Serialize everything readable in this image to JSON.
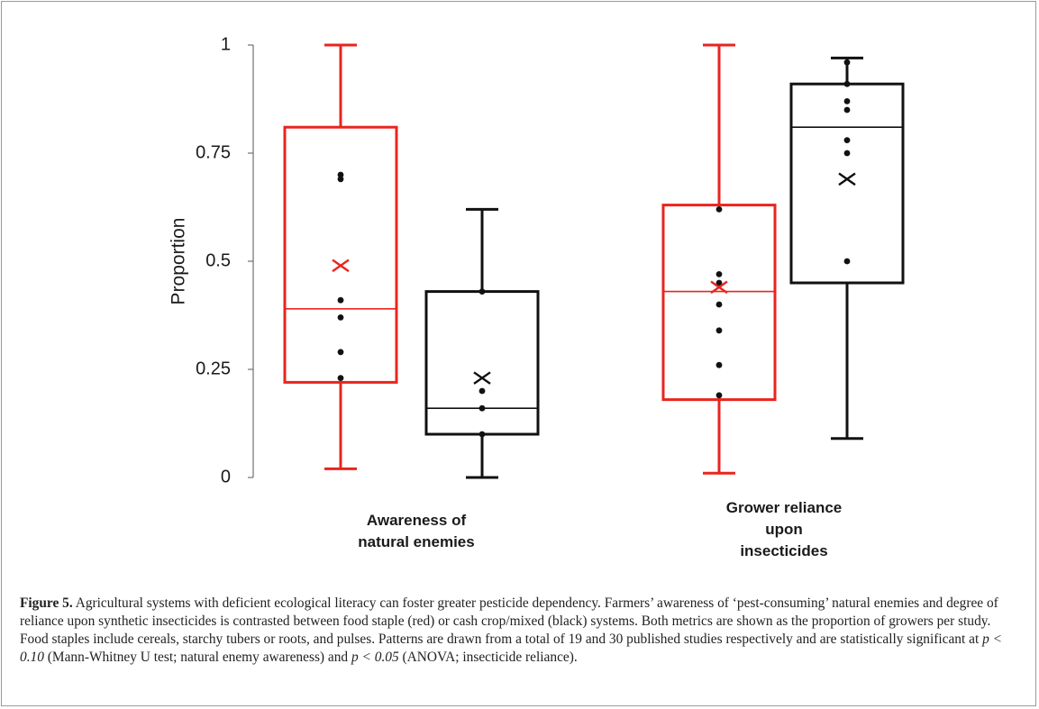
{
  "chart_data": {
    "type": "box",
    "ylabel": "Proportion",
    "ylim": [
      0,
      1
    ],
    "yticks": [
      {
        "value": 0,
        "label": "0"
      },
      {
        "value": 0.25,
        "label": "0.25"
      },
      {
        "value": 0.5,
        "label": "0.5"
      },
      {
        "value": 0.75,
        "label": "0.75"
      },
      {
        "value": 1,
        "label": "1"
      }
    ],
    "groups": [
      {
        "label_lines": [
          "Awareness of",
          "natural enemies"
        ]
      },
      {
        "label_lines": [
          "Grower reliance",
          "upon",
          "insecticides"
        ]
      }
    ],
    "boxes": [
      {
        "group": 0,
        "system": "food staple",
        "color": "#e8251f",
        "min": 0.02,
        "q1": 0.22,
        "median": 0.39,
        "q3": 0.81,
        "max": 1.0,
        "mean": 0.49,
        "points": [
          0.7,
          0.69,
          0.41,
          0.37,
          0.29,
          0.23
        ]
      },
      {
        "group": 0,
        "system": "cash crop/mixed",
        "color": "#111111",
        "min": 0.0,
        "q1": 0.1,
        "median": 0.16,
        "q3": 0.43,
        "max": 0.62,
        "mean": 0.23,
        "points": [
          0.43,
          0.2,
          0.16,
          0.1
        ]
      },
      {
        "group": 1,
        "system": "food staple",
        "color": "#e8251f",
        "min": 0.01,
        "q1": 0.18,
        "median": 0.43,
        "q3": 0.63,
        "max": 1.0,
        "mean": 0.44,
        "points": [
          0.62,
          0.47,
          0.45,
          0.4,
          0.34,
          0.26,
          0.19
        ]
      },
      {
        "group": 1,
        "system": "cash crop/mixed",
        "color": "#111111",
        "min": 0.09,
        "q1": 0.45,
        "median": 0.81,
        "q3": 0.91,
        "max": 0.97,
        "mean": 0.69,
        "points": [
          0.96,
          0.91,
          0.87,
          0.85,
          0.78,
          0.75,
          0.5
        ]
      }
    ]
  },
  "caption": {
    "figure_label": "Figure 5.",
    "text_1": " Agricultural systems with deficient ecological literacy can foster greater pesticide dependency. Farmers’ awareness of ‘pest-consuming’ natural enemies and degree of reliance upon synthetic insecticides is contrasted between food staple (red) or cash crop/mixed (black) systems. Both metrics are shown as the proportion of growers per study. Food staples include cereals, starchy tubers or roots, and pulses. Patterns are drawn from a total of 19 and 30 published studies respectively and are statistically significant at ",
    "stat_1": "p < 0.10",
    "text_2": " (Mann-Whitney U test; natural enemy awareness) and ",
    "stat_2": "p < 0.05",
    "text_3": " (ANOVA; insecticide reliance)."
  }
}
